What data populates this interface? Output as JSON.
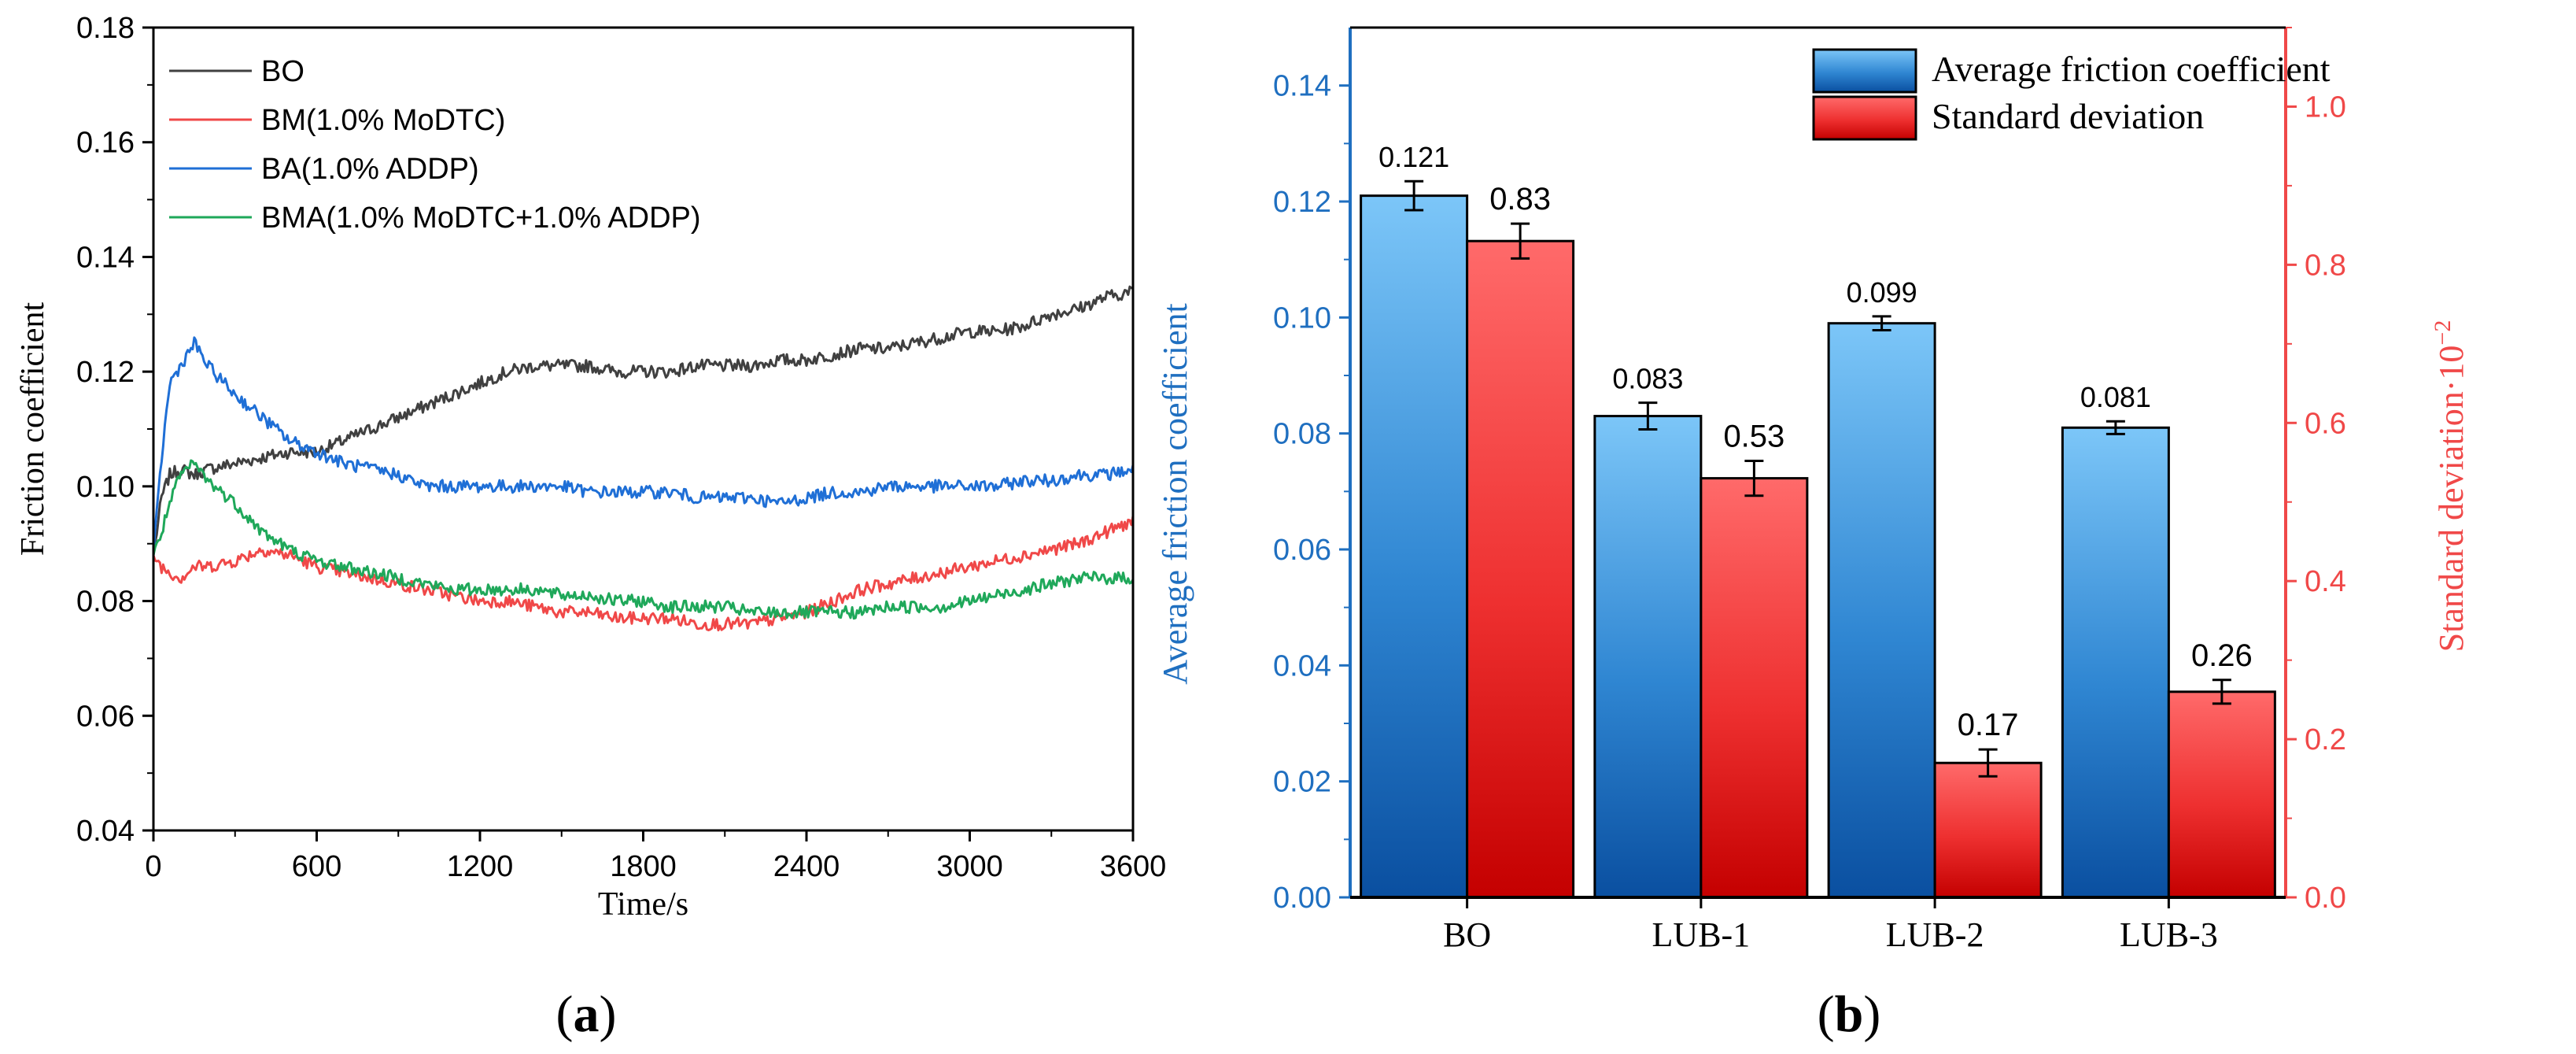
{
  "colors": {
    "BO": "#404040",
    "BM": "#f04848",
    "BA": "#1f6fd6",
    "BMA": "#1fa85a",
    "blue_axis": "#1f6fc0",
    "red_axis": "#f04848"
  },
  "chart_data": [
    {
      "panel": "(a)",
      "type": "line",
      "title": "",
      "xlabel": "Time/s",
      "ylabel": "Friction coefficient",
      "xlim": [
        0,
        3600
      ],
      "ylim": [
        0.04,
        0.18
      ],
      "xticks": [
        "0",
        "600",
        "1200",
        "1800",
        "2400",
        "3000",
        "3600"
      ],
      "yticks": [
        "0.04",
        "0.06",
        "0.08",
        "0.10",
        "0.12",
        "0.14",
        "0.16",
        "0.18"
      ],
      "legend_position": "top-left",
      "x": [
        0,
        30,
        60,
        100,
        150,
        200,
        300,
        400,
        500,
        600,
        700,
        800,
        900,
        1000,
        1100,
        1200,
        1300,
        1400,
        1500,
        1600,
        1700,
        1800,
        1900,
        2000,
        2100,
        2200,
        2300,
        2400,
        2500,
        2600,
        2700,
        2800,
        2900,
        3000,
        3100,
        3200,
        3300,
        3400,
        3500,
        3600
      ],
      "series": [
        {
          "name": "BO",
          "key": "BO",
          "values": [
            0.088,
            0.098,
            0.102,
            0.103,
            0.102,
            0.103,
            0.104,
            0.105,
            0.106,
            0.106,
            0.108,
            0.11,
            0.112,
            0.114,
            0.116,
            0.118,
            0.12,
            0.121,
            0.121,
            0.121,
            0.12,
            0.12,
            0.12,
            0.121,
            0.121,
            0.121,
            0.122,
            0.122,
            0.123,
            0.124,
            0.124,
            0.125,
            0.126,
            0.127,
            0.127,
            0.128,
            0.13,
            0.131,
            0.133,
            0.134
          ]
        },
        {
          "name": "BM(1.0% MoDTC)",
          "key": "BM",
          "values": [
            0.088,
            0.086,
            0.085,
            0.084,
            0.086,
            0.086,
            0.087,
            0.089,
            0.088,
            0.086,
            0.085,
            0.084,
            0.083,
            0.082,
            0.081,
            0.08,
            0.08,
            0.079,
            0.078,
            0.078,
            0.077,
            0.077,
            0.077,
            0.076,
            0.076,
            0.076,
            0.077,
            0.078,
            0.08,
            0.082,
            0.083,
            0.084,
            0.085,
            0.086,
            0.087,
            0.088,
            0.089,
            0.09,
            0.092,
            0.094
          ]
        },
        {
          "name": "BA(1.0% ADDP)",
          "key": "BA",
          "values": [
            0.088,
            0.105,
            0.118,
            0.121,
            0.125,
            0.121,
            0.116,
            0.112,
            0.108,
            0.106,
            0.104,
            0.103,
            0.102,
            0.1,
            0.1,
            0.1,
            0.1,
            0.1,
            0.1,
            0.099,
            0.099,
            0.099,
            0.099,
            0.098,
            0.098,
            0.098,
            0.097,
            0.098,
            0.099,
            0.099,
            0.1,
            0.1,
            0.1,
            0.1,
            0.1,
            0.101,
            0.101,
            0.102,
            0.102,
            0.103
          ]
        },
        {
          "name": "BMA(1.0% MoDTC+1.0% ADDP)",
          "key": "BMA",
          "values": [
            0.088,
            0.092,
            0.097,
            0.102,
            0.104,
            0.101,
            0.097,
            0.092,
            0.089,
            0.087,
            0.086,
            0.085,
            0.084,
            0.083,
            0.082,
            0.082,
            0.082,
            0.082,
            0.081,
            0.081,
            0.08,
            0.08,
            0.079,
            0.079,
            0.079,
            0.078,
            0.078,
            0.078,
            0.078,
            0.078,
            0.079,
            0.079,
            0.079,
            0.08,
            0.081,
            0.082,
            0.083,
            0.084,
            0.084,
            0.084
          ]
        }
      ]
    },
    {
      "panel": "(b)",
      "type": "bar",
      "title": "",
      "xlabel": "",
      "categories": [
        "BO",
        "LUB-1",
        "LUB-2",
        "LUB-3"
      ],
      "legend_position": "top-right",
      "y_left": {
        "label": "Average friction coefficient",
        "lim": [
          0,
          0.15
        ],
        "ticks": [
          "0.00",
          "0.02",
          "0.04",
          "0.06",
          "0.08",
          "0.10",
          "0.12",
          "0.14"
        ]
      },
      "y_right": {
        "label": "Standard deviation·10",
        "label_sup": "−2",
        "lim": [
          0,
          1.1
        ],
        "ticks": [
          "0.0",
          "0.2",
          "0.4",
          "0.6",
          "0.8",
          "1.0"
        ]
      },
      "series": [
        {
          "name": "Average friction coefficient",
          "axis": "left",
          "values": [
            0.121,
            0.083,
            0.099,
            0.081
          ],
          "errors": [
            0.0025,
            0.0023,
            0.0012,
            0.0011
          ],
          "labels": [
            "0.121",
            "0.083",
            "0.099",
            "0.081"
          ]
        },
        {
          "name": "Standard deviation",
          "axis": "right",
          "values": [
            0.83,
            0.53,
            0.17,
            0.26
          ],
          "errors": [
            0.022,
            0.022,
            0.017,
            0.015
          ],
          "labels": [
            "0.83",
            "0.53",
            "0.17",
            "0.26"
          ]
        }
      ]
    }
  ]
}
